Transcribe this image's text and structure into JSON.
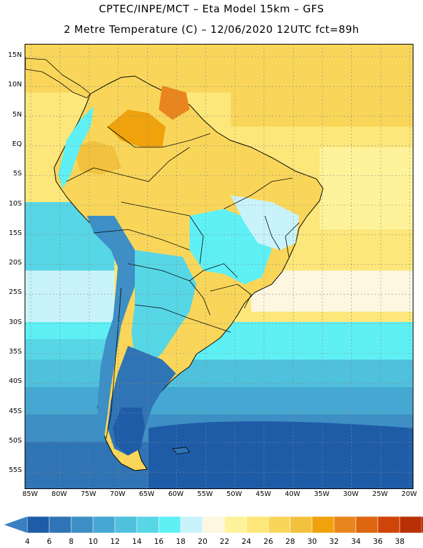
{
  "header": {
    "title_line1": "CPTEC/INPE/MCT –  Eta Model 15km – GFS",
    "title_line2": "2 Metre Temperature (C) – 12/06/2020 12UTC fct=89h"
  },
  "map": {
    "lat_labels": [
      "15N",
      "10N",
      "5N",
      "EQ",
      "5S",
      "10S",
      "15S",
      "20S",
      "25S",
      "30S",
      "35S",
      "40S",
      "45S",
      "50S",
      "55S"
    ],
    "lon_labels": [
      "85W",
      "80W",
      "75W",
      "70W",
      "65W",
      "60W",
      "55W",
      "50W",
      "45W",
      "40W",
      "35W",
      "30W",
      "25W",
      "20W"
    ]
  },
  "colorbar": {
    "labels": [
      "4",
      "6",
      "8",
      "10",
      "12",
      "14",
      "16",
      "18",
      "20",
      "22",
      "24",
      "26",
      "28",
      "30",
      "32",
      "34",
      "36",
      "38"
    ],
    "colors": [
      "#1f5ca8",
      "#2f74b4",
      "#3d8fc5",
      "#45a8d3",
      "#4fc1dd",
      "#57d6e6",
      "#5ff0f5",
      "#c9f3fb",
      "#fdf6e0",
      "#fef39a",
      "#fde77a",
      "#f9d65a",
      "#f2c23e",
      "#efa20b",
      "#e8861d",
      "#de6610",
      "#cf4408",
      "#b93006"
    ],
    "low_color": "#3a7fc0",
    "high_color": "#b93006"
  }
}
